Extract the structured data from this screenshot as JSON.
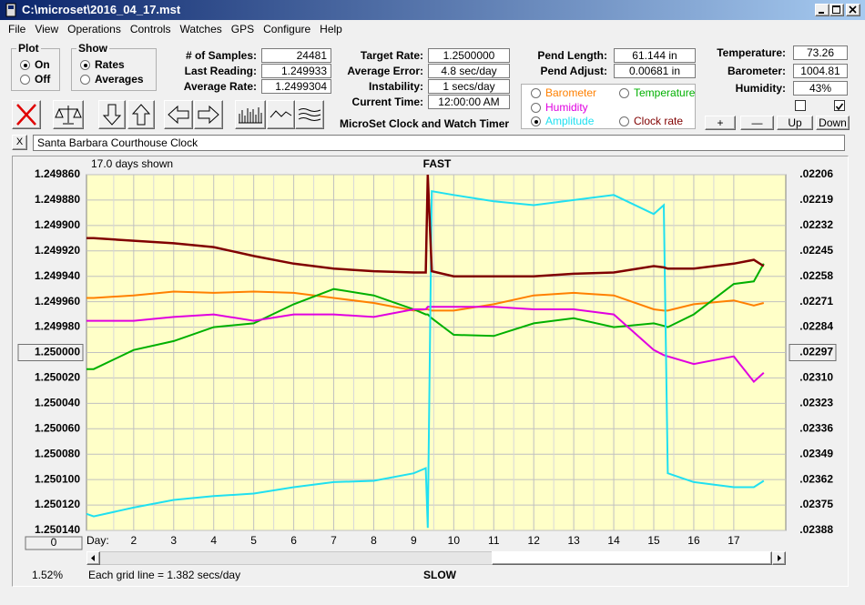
{
  "window": {
    "title": "C:\\microset\\2016_04_17.mst"
  },
  "menu": [
    "File",
    "View",
    "Operations",
    "Controls",
    "Watches",
    "GPS",
    "Configure",
    "Help"
  ],
  "plot_group": {
    "label": "Plot",
    "options": [
      "On",
      "Off"
    ],
    "selected": 0
  },
  "show_group": {
    "label": "Show",
    "options": [
      "Rates",
      "Averages"
    ],
    "selected": 0
  },
  "readouts": [
    [
      {
        "label": "# of Samples:",
        "value": "24481"
      },
      {
        "label": "Last Reading:",
        "value": "1.249933"
      },
      {
        "label": "Average Rate:",
        "value": "1.2499304"
      }
    ],
    [
      {
        "label": "Target Rate:",
        "value": "1.2500000"
      },
      {
        "label": "Average Error:",
        "value": "4.8 sec/day"
      },
      {
        "label": "Instability:",
        "value": "1 secs/day"
      },
      {
        "label": "Current Time:",
        "value": "12:00:00 AM"
      }
    ],
    [
      {
        "label": "Pend Length:",
        "value": "61.144 in"
      },
      {
        "label": "Pend Adjust:",
        "value": "0.00681 in"
      }
    ],
    [
      {
        "label": "Temperature:",
        "value": "73.26"
      },
      {
        "label": "Barometer:",
        "value": "1004.81"
      },
      {
        "label": "Humidity:",
        "value": "43%"
      }
    ]
  ],
  "app_name": "MicroSet Clock and Watch Timer",
  "adjust_buttons": [
    "+",
    "—",
    "Up",
    "Down"
  ],
  "checkboxes": [
    false,
    true
  ],
  "close_button": "X",
  "clock_name": "Santa Barbara Courthouse Clock",
  "chart": {
    "type": "line",
    "status": "17.0 days shown",
    "top_label": "FAST",
    "bottom_label": "SLOW",
    "grid_note": "Each grid line = 1.382 secs/day",
    "percent": "1.52%",
    "x_label": "Day:",
    "scroll_button": "0",
    "background": "#ffffc8",
    "grid": true,
    "selected_series": 3,
    "x": [
      0.82,
      1,
      2,
      3,
      4,
      5,
      6,
      7,
      8,
      9,
      9.3,
      9.35,
      9.45,
      10,
      11,
      12,
      13,
      14,
      15,
      15.25,
      15.35,
      16,
      17,
      17.5,
      17.75
    ],
    "xlim": [
      0.82,
      18.3
    ],
    "xticks": [
      2,
      3,
      4,
      5,
      6,
      7,
      8,
      9,
      10,
      11,
      12,
      13,
      14,
      15,
      16,
      17
    ],
    "ylim": [
      1.25014,
      1.24986
    ],
    "yticks": [
      {
        "value": 1.24986,
        "label": "1.249860"
      },
      {
        "value": 1.24988,
        "label": "1.249880"
      },
      {
        "value": 1.2499,
        "label": "1.249900"
      },
      {
        "value": 1.24992,
        "label": "1.249920"
      },
      {
        "value": 1.24994,
        "label": "1.249940"
      },
      {
        "value": 1.24996,
        "label": "1.249960"
      },
      {
        "value": 1.24998,
        "label": "1.249980"
      },
      {
        "value": 1.25,
        "label": "1.250000"
      },
      {
        "value": 1.25002,
        "label": "1.250020"
      },
      {
        "value": 1.25004,
        "label": "1.250040"
      },
      {
        "value": 1.25006,
        "label": "1.250060"
      },
      {
        "value": 1.25008,
        "label": "1.250080"
      },
      {
        "value": 1.2501,
        "label": "1.250100"
      },
      {
        "value": 1.25012,
        "label": "1.250120"
      },
      {
        "value": 1.25014,
        "label": "1.250140"
      }
    ],
    "y2lim": [
      0.02388,
      0.02206
    ],
    "y2ticks": [
      {
        "value": 0.02206,
        "label": ".02206"
      },
      {
        "value": 0.02219,
        "label": ".02219"
      },
      {
        "value": 0.02232,
        "label": ".02232"
      },
      {
        "value": 0.02245,
        "label": ".02245"
      },
      {
        "value": 0.02258,
        "label": ".02258"
      },
      {
        "value": 0.02271,
        "label": ".02271"
      },
      {
        "value": 0.02284,
        "label": ".02284"
      },
      {
        "value": 0.02297,
        "label": ".02297"
      },
      {
        "value": 0.0231,
        "label": ".02310"
      },
      {
        "value": 0.02323,
        "label": ".02323"
      },
      {
        "value": 0.02336,
        "label": ".02336"
      },
      {
        "value": 0.02349,
        "label": ".02349"
      },
      {
        "value": 0.02362,
        "label": ".02362"
      },
      {
        "value": 0.02375,
        "label": ".02375"
      },
      {
        "value": 0.02388,
        "label": ".02388"
      }
    ],
    "series": [
      {
        "name": "Barometer",
        "color": "#ff8000",
        "values": [
          1.249957,
          1.249957,
          1.249955,
          1.249952,
          1.249953,
          1.249952,
          1.249953,
          1.249957,
          1.249961,
          1.249967,
          1.249966,
          1.249966,
          1.249967,
          1.249967,
          1.249962,
          1.249955,
          1.249953,
          1.249955,
          1.249966,
          1.249967,
          1.249967,
          1.249962,
          1.249959,
          1.249963,
          1.249961
        ]
      },
      {
        "name": "Temperature",
        "color": "#00b000",
        "values": [
          1.250013,
          1.250013,
          1.249998,
          1.249991,
          1.24998,
          1.249977,
          1.249962,
          1.24995,
          1.249955,
          1.249966,
          1.24997,
          1.24997,
          1.249973,
          1.249986,
          1.249987,
          1.249977,
          1.249973,
          1.24998,
          1.249977,
          1.249979,
          1.24998,
          1.24997,
          1.249946,
          1.249944,
          1.24993
        ]
      },
      {
        "name": "Humidity",
        "color": "#e000e0",
        "values": [
          1.249975,
          1.249975,
          1.249975,
          1.249972,
          1.24997,
          1.249975,
          1.24997,
          1.24997,
          1.249972,
          1.249966,
          1.249966,
          1.249964,
          1.249964,
          1.249964,
          1.249964,
          1.249966,
          1.249966,
          1.24997,
          1.249998,
          1.250002,
          1.250003,
          1.250009,
          1.250003,
          1.250023,
          1.250016
        ]
      },
      {
        "name": "Amplitude",
        "color": "#20e0f0",
        "values": [
          1.250127,
          1.250129,
          1.250122,
          1.250116,
          1.250113,
          1.250111,
          1.250106,
          1.250102,
          1.250101,
          1.250095,
          1.250091,
          1.250138,
          1.249873,
          1.249876,
          1.249881,
          1.249884,
          1.24988,
          1.249876,
          1.249891,
          1.249884,
          1.250095,
          1.250102,
          1.250106,
          1.250106,
          1.250101
        ]
      },
      {
        "name": "Clock rate",
        "color": "#800000",
        "values": [
          1.24991,
          1.24991,
          1.249912,
          1.249914,
          1.249917,
          1.249924,
          1.24993,
          1.249934,
          1.249936,
          1.249937,
          1.249937,
          1.24986,
          1.249936,
          1.24994,
          1.24994,
          1.24994,
          1.249938,
          1.249937,
          1.249932,
          1.249933,
          1.249934,
          1.249934,
          1.24993,
          1.249927,
          1.249932
        ]
      }
    ]
  }
}
